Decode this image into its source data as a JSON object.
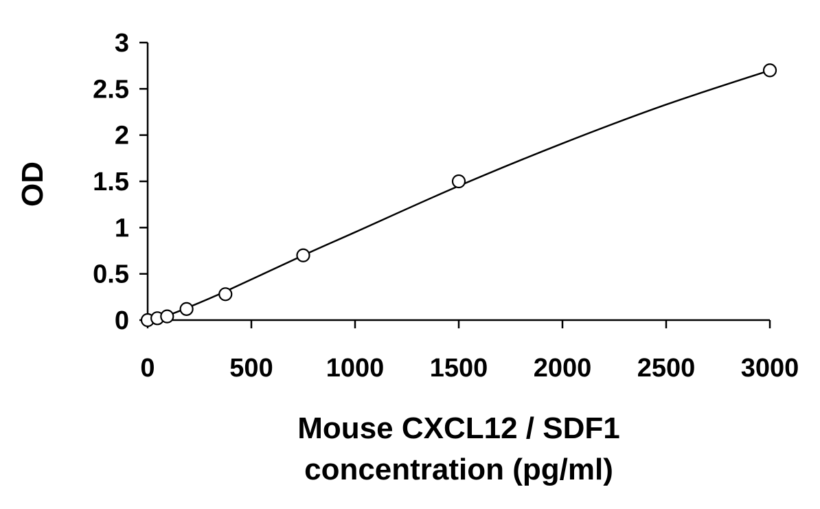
{
  "chart_data": {
    "type": "scatter",
    "title": "",
    "xlabel_lines": [
      "Mouse CXCL12 / SDF1",
      "concentration (pg/ml)"
    ],
    "ylabel": "OD",
    "xlim": [
      0,
      3000
    ],
    "ylim": [
      0,
      3
    ],
    "x_ticks": [
      0,
      500,
      1000,
      1500,
      2000,
      2500,
      3000
    ],
    "y_ticks": [
      0,
      0.5,
      1,
      1.5,
      2,
      2.5,
      3
    ],
    "x_tick_labels": [
      "0",
      "500",
      "1000",
      "1500",
      "2000",
      "2500",
      "3000"
    ],
    "y_tick_labels": [
      "0",
      "0.5",
      "1",
      "1.5",
      "2",
      "2.5",
      "3"
    ],
    "grid": false,
    "legend": "none",
    "series": [
      {
        "points": [
          {
            "x": 0,
            "y": 0.0
          },
          {
            "x": 46.875,
            "y": 0.02
          },
          {
            "x": 93.75,
            "y": 0.04
          },
          {
            "x": 187.5,
            "y": 0.12
          },
          {
            "x": 375,
            "y": 0.28
          },
          {
            "x": 750,
            "y": 0.7
          },
          {
            "x": 1500,
            "y": 1.5
          },
          {
            "x": 3000,
            "y": 2.7
          }
        ],
        "marker": "open-circle",
        "color": "#000000"
      }
    ],
    "fit_curve": {
      "type": "smooth",
      "points": [
        {
          "x": 0,
          "y": 0.0
        },
        {
          "x": 93.75,
          "y": 0.05
        },
        {
          "x": 187.5,
          "y": 0.13
        },
        {
          "x": 375,
          "y": 0.31
        },
        {
          "x": 750,
          "y": 0.7
        },
        {
          "x": 1000,
          "y": 0.95
        },
        {
          "x": 1500,
          "y": 1.45
        },
        {
          "x": 2000,
          "y": 1.91
        },
        {
          "x": 2500,
          "y": 2.33
        },
        {
          "x": 3000,
          "y": 2.7
        }
      ],
      "color": "#000000"
    }
  }
}
